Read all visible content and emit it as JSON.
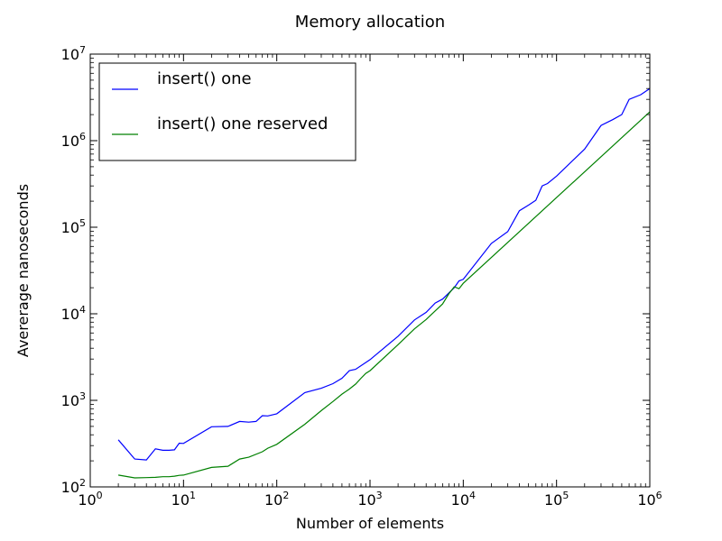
{
  "chart_data": {
    "type": "line",
    "title": "Memory allocation",
    "xlabel": "Number of elements",
    "ylabel": "Avererage nanoseconds",
    "x_scale": "log",
    "y_scale": "log",
    "xlim": [
      1,
      1000000
    ],
    "ylim": [
      100,
      10000000
    ],
    "x_ticks": [
      {
        "base": "10",
        "exp": "0",
        "value": 1
      },
      {
        "base": "10",
        "exp": "1",
        "value": 10
      },
      {
        "base": "10",
        "exp": "2",
        "value": 100
      },
      {
        "base": "10",
        "exp": "3",
        "value": 1000
      },
      {
        "base": "10",
        "exp": "4",
        "value": 10000
      },
      {
        "base": "10",
        "exp": "5",
        "value": 100000
      },
      {
        "base": "10",
        "exp": "6",
        "value": 1000000
      }
    ],
    "y_ticks": [
      {
        "base": "10",
        "exp": "2",
        "value": 100
      },
      {
        "base": "10",
        "exp": "3",
        "value": 1000
      },
      {
        "base": "10",
        "exp": "4",
        "value": 10000
      },
      {
        "base": "10",
        "exp": "5",
        "value": 100000
      },
      {
        "base": "10",
        "exp": "6",
        "value": 1000000
      },
      {
        "base": "10",
        "exp": "7",
        "value": 10000000
      }
    ],
    "legend_position": "top-left",
    "grid": false,
    "series": [
      {
        "name": "insert() one",
        "color": "#0000ff",
        "points": [
          [
            2,
            350
          ],
          [
            3,
            210
          ],
          [
            4,
            205
          ],
          [
            5,
            275
          ],
          [
            6,
            265
          ],
          [
            7,
            265
          ],
          [
            8,
            268
          ],
          [
            9,
            320
          ],
          [
            10,
            318
          ],
          [
            20,
            495
          ],
          [
            30,
            500
          ],
          [
            40,
            570
          ],
          [
            50,
            560
          ],
          [
            60,
            570
          ],
          [
            70,
            665
          ],
          [
            80,
            660
          ],
          [
            100,
            700
          ],
          [
            200,
            1230
          ],
          [
            300,
            1380
          ],
          [
            400,
            1560
          ],
          [
            500,
            1800
          ],
          [
            600,
            2200
          ],
          [
            700,
            2280
          ],
          [
            1000,
            2950
          ],
          [
            2000,
            5500
          ],
          [
            3000,
            8500
          ],
          [
            4000,
            10400
          ],
          [
            5000,
            13300
          ],
          [
            6000,
            14800
          ],
          [
            8000,
            20000
          ],
          [
            9000,
            24000
          ],
          [
            10000,
            25000
          ],
          [
            20000,
            65000
          ],
          [
            30000,
            89000
          ],
          [
            40000,
            155000
          ],
          [
            50000,
            180000
          ],
          [
            60000,
            205000
          ],
          [
            70000,
            300000
          ],
          [
            80000,
            320000
          ],
          [
            100000,
            390000
          ],
          [
            200000,
            800000
          ],
          [
            300000,
            1500000
          ],
          [
            400000,
            1750000
          ],
          [
            500000,
            2000000
          ],
          [
            600000,
            3000000
          ],
          [
            800000,
            3400000
          ],
          [
            1000000,
            4000000
          ]
        ]
      },
      {
        "name": "insert() one reserved",
        "color": "#008000",
        "points": [
          [
            2,
            137
          ],
          [
            3,
            127
          ],
          [
            4,
            128
          ],
          [
            5,
            129
          ],
          [
            6,
            131
          ],
          [
            7,
            131
          ],
          [
            8,
            133
          ],
          [
            9,
            136
          ],
          [
            10,
            137
          ],
          [
            20,
            168
          ],
          [
            30,
            173
          ],
          [
            40,
            210
          ],
          [
            50,
            220
          ],
          [
            70,
            255
          ],
          [
            80,
            280
          ],
          [
            100,
            310
          ],
          [
            200,
            530
          ],
          [
            300,
            760
          ],
          [
            400,
            970
          ],
          [
            500,
            1180
          ],
          [
            600,
            1350
          ],
          [
            700,
            1540
          ],
          [
            800,
            1800
          ],
          [
            900,
            2050
          ],
          [
            1000,
            2200
          ],
          [
            2000,
            4400
          ],
          [
            3000,
            6700
          ],
          [
            4000,
            8600
          ],
          [
            5000,
            10800
          ],
          [
            6000,
            13000
          ],
          [
            7000,
            17000
          ],
          [
            8000,
            20500
          ],
          [
            9000,
            19500
          ],
          [
            10000,
            22500
          ],
          [
            100000,
            220000
          ],
          [
            1000000,
            2150000
          ]
        ]
      }
    ]
  }
}
